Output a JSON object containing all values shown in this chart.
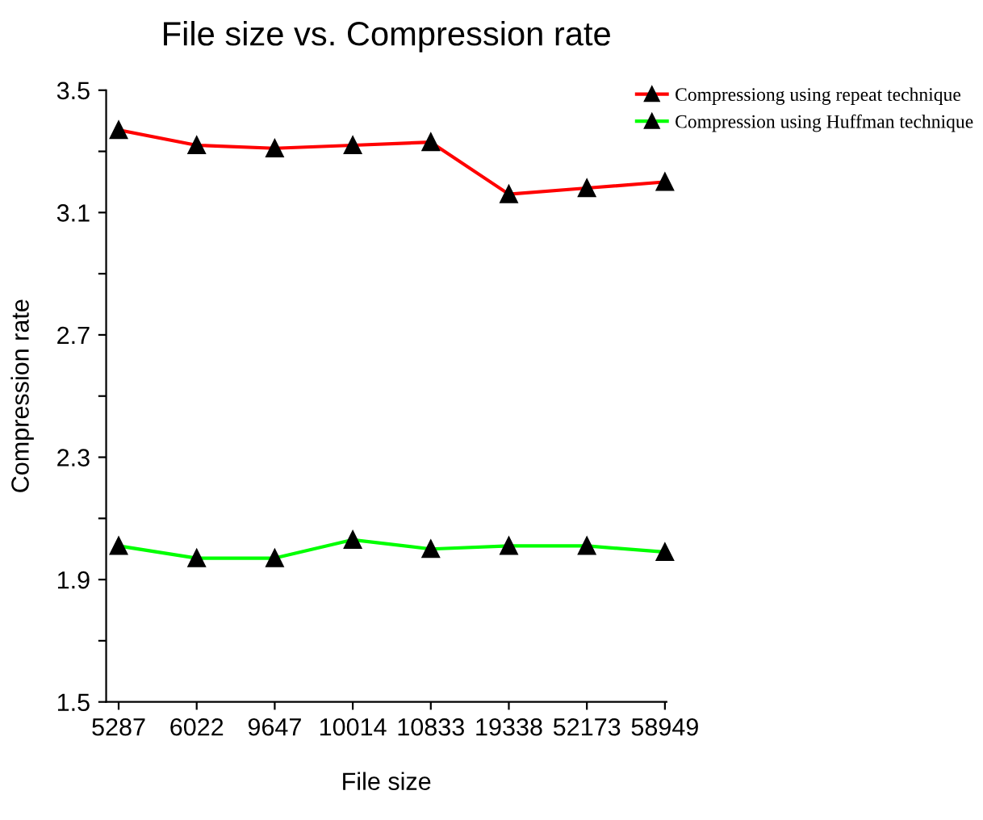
{
  "chart_data": {
    "type": "line",
    "title": "File size vs. Compression rate",
    "xlabel": "File size",
    "ylabel": "Compression rate",
    "categories": [
      "5287",
      "6022",
      "9647",
      "10014",
      "10833",
      "19338",
      "52173",
      "58949"
    ],
    "series": [
      {
        "name": "Compressiong using repeat technique",
        "color": "#ff0000",
        "values": [
          3.37,
          3.32,
          3.31,
          3.32,
          3.33,
          3.16,
          3.18,
          3.2
        ]
      },
      {
        "name": "Compression using Huffman technique",
        "color": "#00ff00",
        "values": [
          2.01,
          1.97,
          1.97,
          2.03,
          2.0,
          2.01,
          2.01,
          1.99
        ]
      }
    ],
    "ylim": [
      1.5,
      3.5
    ],
    "yticks": [
      1.5,
      {
        "value": 1.7,
        "label": null
      },
      1.9,
      {
        "value": 2.1,
        "label": null
      },
      2.3,
      {
        "value": 2.5,
        "label": null
      },
      2.7,
      {
        "value": 2.9,
        "label": null
      },
      3.1,
      {
        "value": 3.3,
        "label": null
      },
      3.5
    ],
    "marker": "triangle",
    "line_style": "solid",
    "grid": false,
    "legend": "top right"
  }
}
